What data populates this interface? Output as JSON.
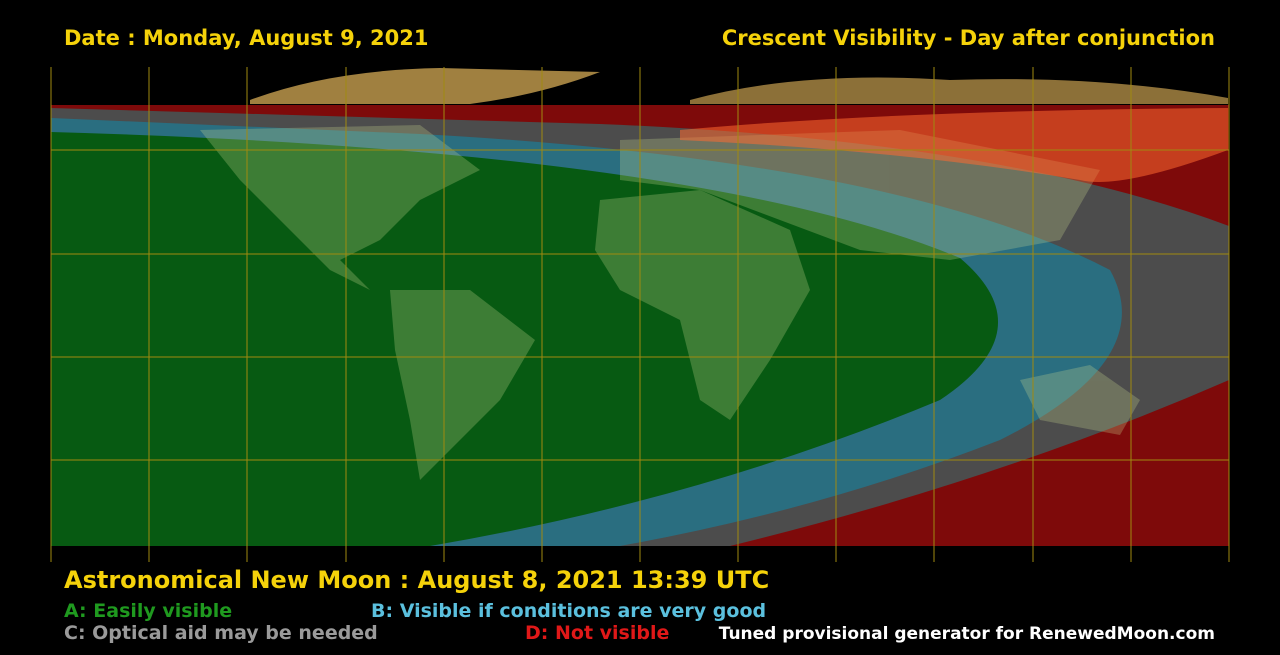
{
  "header": {
    "date": "Date : Monday, August 9, 2021",
    "title": "Crescent Visibility - Day after conjunction"
  },
  "footer": {
    "new_moon": "Astronomical New Moon : August 8, 2021 13:39 UTC",
    "credit": "Tuned provisional generator for RenewedMoon.com"
  },
  "legend": [
    "A: Easily visible",
    "B: Visible if conditions are very good",
    "C: Optical aid may be needed",
    "D: Not visible"
  ]
}
